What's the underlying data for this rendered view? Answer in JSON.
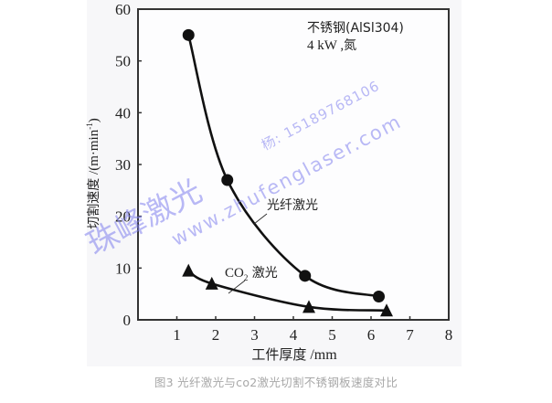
{
  "chart_data": {
    "type": "line",
    "title": "",
    "xlabel": "工件厚度 /mm",
    "ylabel": "切割速度 /(m·min⁻¹)",
    "xlim": [
      0,
      8
    ],
    "ylim": [
      0,
      60
    ],
    "x_ticks": [
      1,
      2,
      3,
      4,
      5,
      6,
      7,
      8
    ],
    "y_ticks": [
      0,
      10,
      20,
      30,
      40,
      50,
      60
    ],
    "grid": false,
    "legend_position": "inline annotations",
    "annotations": {
      "material": "不锈钢(AlSl304)",
      "conditions": "4 kW , 氮"
    },
    "series": [
      {
        "name": "光纤激光",
        "marker": "circle",
        "x": [
          1.3,
          2.3,
          4.3,
          6.2
        ],
        "y": [
          55,
          27,
          8.5,
          4.5
        ]
      },
      {
        "name": "CO₂ 激光",
        "marker": "triangle",
        "x": [
          1.3,
          1.9,
          4.4,
          6.4
        ],
        "y": [
          9.5,
          7,
          2.5,
          1.8
        ]
      }
    ]
  },
  "labels": {
    "y_axis_cjk": "切割速度",
    "y_axis_unit": " /(m·min",
    "y_axis_sup": "-1",
    "y_axis_close": ")",
    "x_axis_cjk": "工件厚度",
    "x_axis_unit": " /mm",
    "material": "不锈钢(AlSl304)",
    "conditions_num": "4 kW ,",
    "conditions_gas": "氮",
    "fiber_label": "光纤激光",
    "co2_label_prefix": "CO",
    "co2_label_sub": "2",
    "co2_label_suffix": " 激光"
  },
  "caption": "图3  光纤激光与co2激光切割不锈钢板速度对比",
  "watermark": {
    "name": "珠峰激光",
    "contact": "杨: 15189768106",
    "url": "www.zhufenglaser.com"
  },
  "colors": {
    "axis": "#333333",
    "line": "#111111",
    "watermark": "#8080ee",
    "caption": "#a8a8a8"
  }
}
